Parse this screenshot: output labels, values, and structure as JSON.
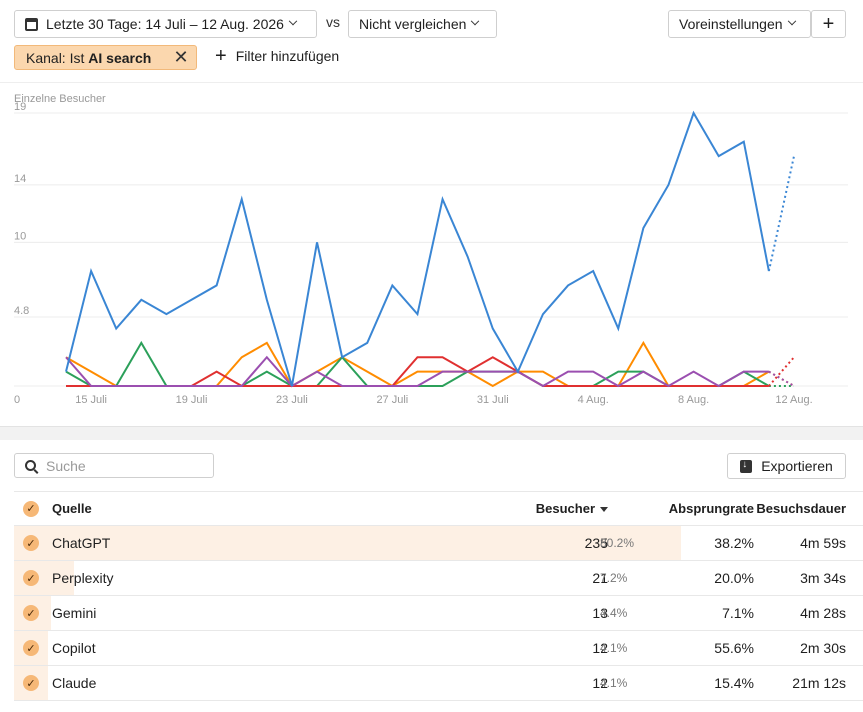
{
  "toolbar": {
    "date_range": "Letzte 30 Tage: 14 Juli – 12 Aug. 2026",
    "vs": "vs",
    "compare": "Nicht vergleichen",
    "presets": "Voreinstellungen",
    "add": "+"
  },
  "filter": {
    "prefix": "Kanal: Ist ",
    "value": "AI search",
    "add_filter": "Filter hinzufügen"
  },
  "chart_data": {
    "type": "line",
    "ylabel": "Einzelne Besucher",
    "y_ticks": [
      "0",
      "4.8",
      "10",
      "14",
      "19"
    ],
    "ylim": [
      0,
      19
    ],
    "x_ticks": [
      "15 Juli",
      "19 Juli",
      "23 Juli",
      "27 Juli",
      "31 Juli",
      "4 Aug.",
      "8 Aug.",
      "12 Aug."
    ],
    "x": [
      "14 Juli",
      "15 Juli",
      "16 Juli",
      "17 Juli",
      "18 Juli",
      "19 Juli",
      "20 Juli",
      "21 Juli",
      "22 Juli",
      "23 Juli",
      "24 Juli",
      "25 Juli",
      "26 Juli",
      "27 Juli",
      "28 Juli",
      "29 Juli",
      "30 Juli",
      "31 Juli",
      "1 Aug.",
      "2 Aug.",
      "3 Aug.",
      "4 Aug.",
      "5 Aug.",
      "6 Aug.",
      "7 Aug.",
      "8 Aug.",
      "9 Aug.",
      "10 Aug.",
      "11 Aug.",
      "12 Aug."
    ],
    "grid": true,
    "last_point_dotted": true,
    "series": [
      {
        "color": "#3a86d4",
        "values": [
          1,
          8,
          4,
          6,
          5,
          6,
          7,
          13,
          6,
          0,
          10,
          2,
          3,
          7,
          5,
          13,
          9,
          4,
          1,
          5,
          7,
          8,
          4,
          11,
          14,
          19,
          16,
          17,
          8,
          16
        ]
      },
      {
        "color": "#ff8c00",
        "values": [
          2,
          1,
          0,
          0,
          0,
          0,
          0,
          2,
          3,
          0,
          1,
          2,
          1,
          0,
          1,
          1,
          1,
          0,
          1,
          1,
          0,
          0,
          0,
          3,
          0,
          0,
          0,
          0,
          1,
          0
        ]
      },
      {
        "color": "#2ca05a",
        "values": [
          1,
          0,
          0,
          3,
          0,
          0,
          0,
          0,
          1,
          0,
          0,
          2,
          0,
          0,
          0,
          0,
          1,
          1,
          1,
          0,
          0,
          0,
          1,
          1,
          0,
          0,
          0,
          1,
          0,
          0
        ]
      },
      {
        "color": "#e03030",
        "values": [
          0,
          0,
          0,
          0,
          0,
          0,
          1,
          0,
          0,
          0,
          0,
          0,
          0,
          0,
          2,
          2,
          1,
          2,
          1,
          0,
          0,
          0,
          0,
          0,
          0,
          0,
          0,
          0,
          0,
          2
        ]
      },
      {
        "color": "#9b4fb0",
        "values": [
          2,
          0,
          0,
          0,
          0,
          0,
          0,
          0,
          2,
          0,
          1,
          0,
          0,
          0,
          0,
          1,
          1,
          1,
          1,
          0,
          1,
          1,
          0,
          1,
          0,
          1,
          0,
          1,
          1,
          0
        ]
      }
    ]
  },
  "search": {
    "placeholder": "Suche"
  },
  "export_label": "Exportieren",
  "table": {
    "headers": {
      "source": "Quelle",
      "visitors": "Besucher",
      "bounce": "Absprungrate",
      "duration": "Besuchsdauer"
    },
    "rows": [
      {
        "source": "ChatGPT",
        "visitors": "235",
        "pct": "80.2%",
        "bar": 0.802,
        "bounce": "38.2%",
        "duration": "4m 59s"
      },
      {
        "source": "Perplexity",
        "visitors": "21",
        "pct": "7.2%",
        "bar": 0.072,
        "bounce": "20.0%",
        "duration": "3m 34s"
      },
      {
        "source": "Gemini",
        "visitors": "13",
        "pct": "4.4%",
        "bar": 0.044,
        "bounce": "7.1%",
        "duration": "4m 28s"
      },
      {
        "source": "Copilot",
        "visitors": "12",
        "pct": "4.1%",
        "bar": 0.041,
        "bounce": "55.6%",
        "duration": "2m 30s"
      },
      {
        "source": "Claude",
        "visitors": "12",
        "pct": "4.1%",
        "bar": 0.041,
        "bounce": "15.4%",
        "duration": "21m 12s"
      }
    ]
  }
}
